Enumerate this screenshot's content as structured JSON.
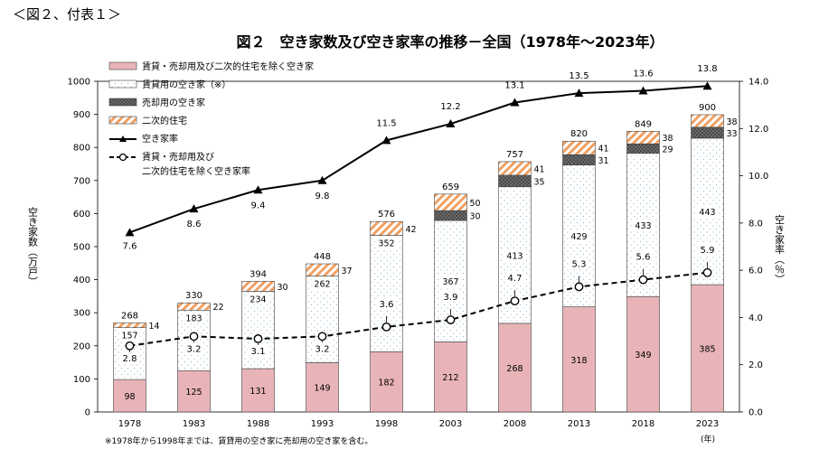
{
  "header": {
    "caption": "＜図２、付表１＞"
  },
  "chart_data": {
    "type": "bar",
    "title": "図２　空き家数及び空き家率の推移－全国（1978年～2023年）",
    "categories": [
      "1978",
      "1983",
      "1988",
      "1993",
      "1998",
      "2003",
      "2008",
      "2013",
      "2018",
      "2023"
    ],
    "ylabel": "空き家数（万戸）",
    "y2label": "空き家率（％）",
    "xunit": "(年)",
    "ylim": [
      0,
      1000
    ],
    "y2lim": [
      0,
      14
    ],
    "yticks": [
      "0",
      "100",
      "200",
      "300",
      "400",
      "500",
      "600",
      "700",
      "800",
      "900",
      "1000"
    ],
    "y2ticks": [
      "0.0",
      "2.0",
      "4.0",
      "6.0",
      "8.0",
      "10.0",
      "12.0",
      "14.0"
    ],
    "stacked_series": [
      {
        "name": "賃貸・売却用及び二次的住宅を除く空き家",
        "color": "#e8b4b8",
        "values": [
          98,
          125,
          131,
          149,
          182,
          212,
          268,
          318,
          349,
          385
        ],
        "labels": [
          "98",
          "125",
          "131",
          "149",
          "182",
          "212",
          "268",
          "318",
          "349",
          "385"
        ]
      },
      {
        "name": "賃貸用の空き家（※）",
        "color": "#ffffff",
        "values": [
          157,
          183,
          234,
          262,
          352,
          367,
          413,
          429,
          433,
          443
        ],
        "labels": [
          "157",
          "183",
          "234",
          "262",
          "352",
          "367",
          "413",
          "429",
          "433",
          "443"
        ]
      },
      {
        "name": "売却用の空き家",
        "color": "#555555",
        "values": [
          0,
          0,
          0,
          0,
          0,
          30,
          35,
          31,
          29,
          33
        ],
        "labels": [
          "",
          "",
          "",
          "",
          "",
          "30",
          "35",
          "31",
          "29",
          "33"
        ]
      },
      {
        "name": "二次的住宅",
        "color": "#f4a460",
        "values": [
          14,
          22,
          30,
          37,
          42,
          50,
          41,
          41,
          38,
          38
        ],
        "labels": [
          "14",
          "22",
          "30",
          "37",
          "42",
          "50",
          "41",
          "41",
          "38",
          "38"
        ]
      }
    ],
    "totals": [
      "268",
      "330",
      "394",
      "448",
      "576",
      "659",
      "757",
      "820",
      "849",
      "900"
    ],
    "line_series": [
      {
        "name": "空き家率",
        "style": "solid-triangle",
        "values": [
          7.6,
          8.6,
          9.4,
          9.8,
          11.5,
          12.2,
          13.1,
          13.5,
          13.6,
          13.8
        ],
        "labels": [
          "7.6",
          "8.6",
          "9.4",
          "9.8",
          "11.5",
          "12.2",
          "13.1",
          "13.5",
          "13.6",
          "13.8"
        ]
      },
      {
        "name_lines": [
          "賃貸・売却用及び",
          "二次的住宅を除く空き家率"
        ],
        "style": "dashed-circle",
        "values": [
          2.8,
          3.2,
          3.1,
          3.2,
          3.6,
          3.9,
          4.7,
          5.3,
          5.6,
          5.9
        ],
        "labels": [
          "2.8",
          "3.2",
          "3.1",
          "3.2",
          "3.6",
          "3.9",
          "4.7",
          "5.3",
          "5.6",
          "5.9"
        ]
      }
    ],
    "legend_position": "top-left",
    "footnote": "※1978年から1998年までは、賃貸用の空き家に売却用の空き家を含む。"
  }
}
